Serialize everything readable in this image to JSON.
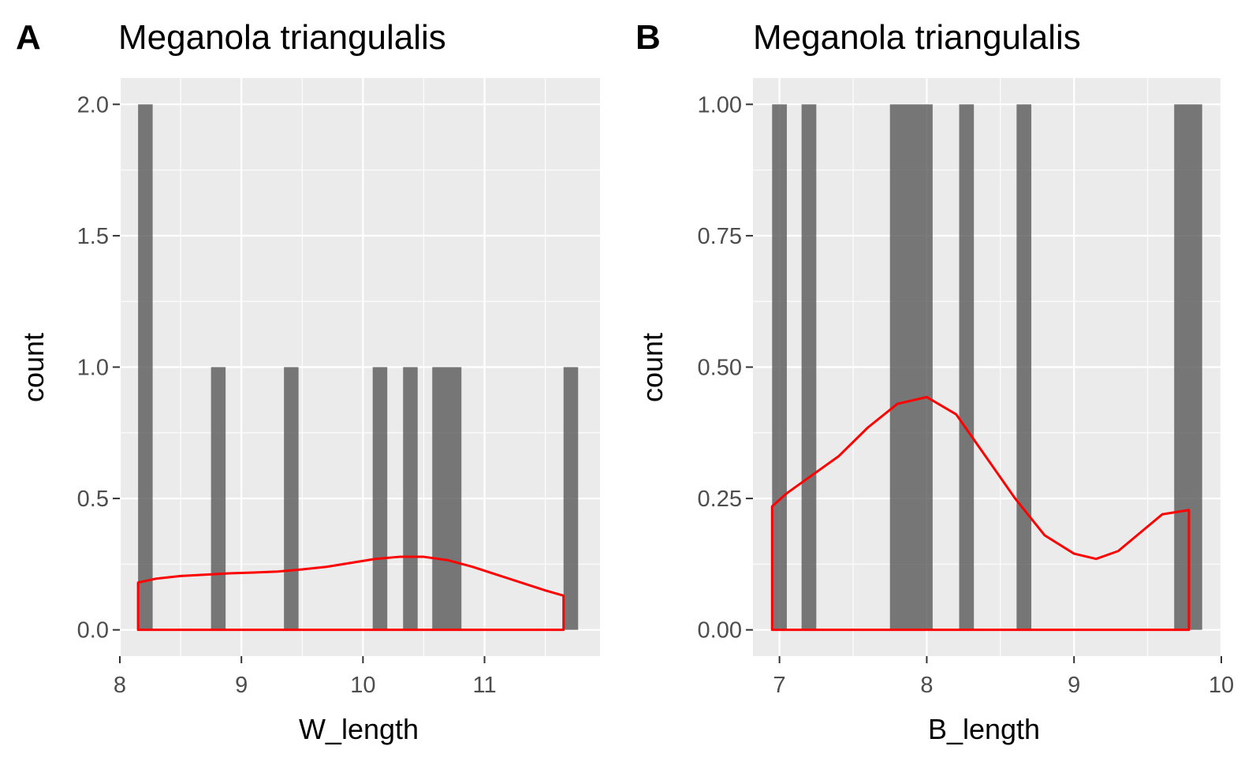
{
  "chart_data": [
    {
      "panel_tag": "A",
      "type": "bar",
      "title": "Meganola triangulalis",
      "xlabel": "W_length",
      "ylabel": "count",
      "xlim": [
        8.0,
        11.95
      ],
      "ylim": [
        -0.1,
        2.1
      ],
      "x_ticks": [
        8,
        9,
        10,
        11
      ],
      "x_tick_labels": [
        "8",
        "9",
        "10",
        "11"
      ],
      "y_ticks": [
        0,
        0.5,
        1.0,
        1.5,
        2.0
      ],
      "y_tick_labels": [
        "0.0",
        "0.5",
        "1.0",
        "1.5",
        "2.0"
      ],
      "bars": [
        {
          "xmin": 8.15,
          "xmax": 8.27,
          "count": 2
        },
        {
          "xmin": 8.75,
          "xmax": 8.87,
          "count": 1
        },
        {
          "xmin": 9.35,
          "xmax": 9.47,
          "count": 1
        },
        {
          "xmin": 10.08,
          "xmax": 10.2,
          "count": 1
        },
        {
          "xmin": 10.33,
          "xmax": 10.45,
          "count": 1
        },
        {
          "xmin": 10.57,
          "xmax": 10.81,
          "count": 1
        },
        {
          "xmin": 11.65,
          "xmax": 11.77,
          "count": 1
        }
      ],
      "density": {
        "x": [
          8.15,
          8.3,
          8.5,
          8.7,
          8.9,
          9.1,
          9.3,
          9.5,
          9.7,
          9.9,
          10.1,
          10.3,
          10.5,
          10.7,
          10.9,
          11.1,
          11.3,
          11.5,
          11.65
        ],
        "y": [
          0.18,
          0.195,
          0.205,
          0.21,
          0.215,
          0.218,
          0.222,
          0.23,
          0.24,
          0.255,
          0.27,
          0.278,
          0.278,
          0.265,
          0.24,
          0.21,
          0.18,
          0.15,
          0.13
        ]
      },
      "grid": true,
      "colors": {
        "bar": "#595959",
        "density": "#ff0000",
        "panel": "#ebebeb"
      }
    },
    {
      "panel_tag": "B",
      "type": "bar",
      "title": "Meganola triangulalis",
      "xlabel": "B_length",
      "ylabel": "count",
      "xlim": [
        6.82,
        10.0
      ],
      "ylim": [
        -0.05,
        1.05
      ],
      "x_ticks": [
        7,
        8,
        9,
        10
      ],
      "x_tick_labels": [
        "7",
        "8",
        "9",
        "10"
      ],
      "y_ticks": [
        0,
        0.25,
        0.5,
        0.75,
        1.0
      ],
      "y_tick_labels": [
        "0.00",
        "0.25",
        "0.50",
        "0.75",
        "1.00"
      ],
      "bars": [
        {
          "xmin": 6.95,
          "xmax": 7.05,
          "count": 1
        },
        {
          "xmin": 7.15,
          "xmax": 7.25,
          "count": 1
        },
        {
          "xmin": 7.75,
          "xmax": 8.04,
          "count": 1
        },
        {
          "xmin": 8.22,
          "xmax": 8.32,
          "count": 1
        },
        {
          "xmin": 8.61,
          "xmax": 8.71,
          "count": 1
        },
        {
          "xmin": 9.68,
          "xmax": 9.87,
          "count": 1
        }
      ],
      "density": {
        "x": [
          6.95,
          7.05,
          7.2,
          7.4,
          7.6,
          7.8,
          8.0,
          8.2,
          8.4,
          8.6,
          8.8,
          9.0,
          9.15,
          9.3,
          9.45,
          9.6,
          9.78
        ],
        "y": [
          0.235,
          0.26,
          0.29,
          0.33,
          0.385,
          0.43,
          0.443,
          0.41,
          0.33,
          0.25,
          0.18,
          0.145,
          0.135,
          0.15,
          0.185,
          0.22,
          0.228
        ]
      },
      "grid": true,
      "colors": {
        "bar": "#595959",
        "density": "#ff0000",
        "panel": "#ebebeb"
      }
    }
  ]
}
